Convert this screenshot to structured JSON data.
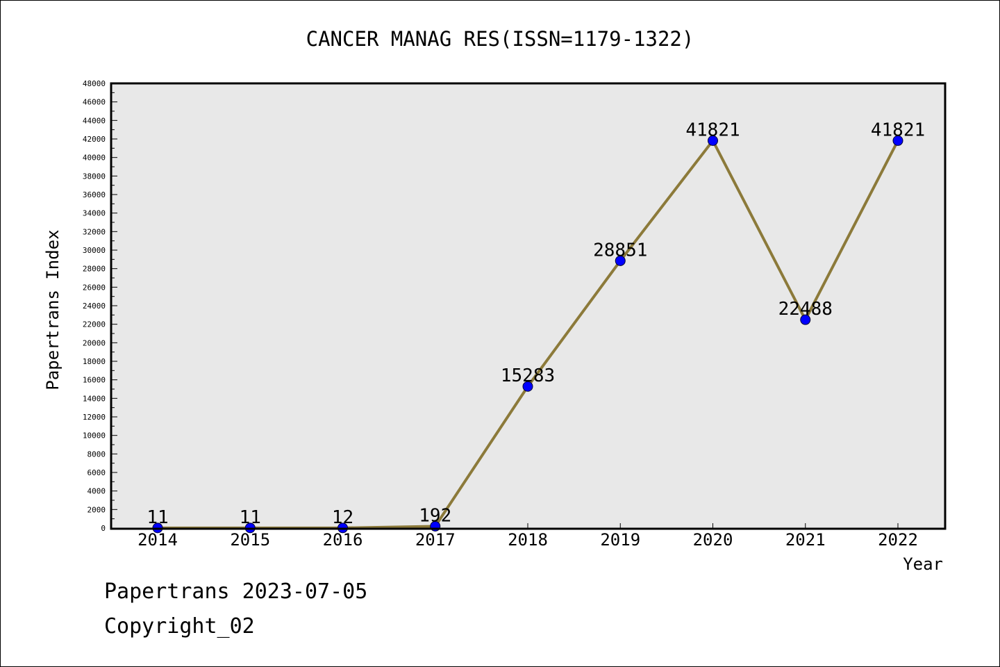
{
  "chart_data": {
    "type": "line",
    "title": "CANCER MANAG RES(ISSN=1179-1322)",
    "xlabel": "Year",
    "ylabel": "Papertrans Index",
    "categories": [
      "2014",
      "2015",
      "2016",
      "2017",
      "2018",
      "2019",
      "2020",
      "2021",
      "2022"
    ],
    "series": [
      {
        "values": [
          11,
          11,
          12,
          192,
          15283,
          28851,
          41821,
          22488,
          41821
        ]
      }
    ],
    "data_labels": [
      "11",
      "11",
      "12",
      "192",
      "15283",
      "28851",
      "41821",
      "22488",
      "41821"
    ],
    "ylim": [
      0,
      48000
    ],
    "yticks": [
      "0",
      "2000",
      "4000",
      "6000",
      "8000",
      "10000",
      "12000",
      "14000",
      "16000",
      "18000",
      "20000",
      "22000",
      "24000",
      "26000",
      "28000",
      "30000",
      "32000",
      "34000",
      "36000",
      "38000",
      "40000",
      "42000",
      "44000",
      "46000",
      "48000"
    ],
    "grid": false,
    "legend": "none",
    "colors": {
      "line": "#8c7a3a",
      "marker": "#0000ff",
      "plot_bg": "#e8e8e8"
    }
  },
  "footer": {
    "date_line": "Papertrans 2023-07-05",
    "copyright": "Copyright_02"
  }
}
